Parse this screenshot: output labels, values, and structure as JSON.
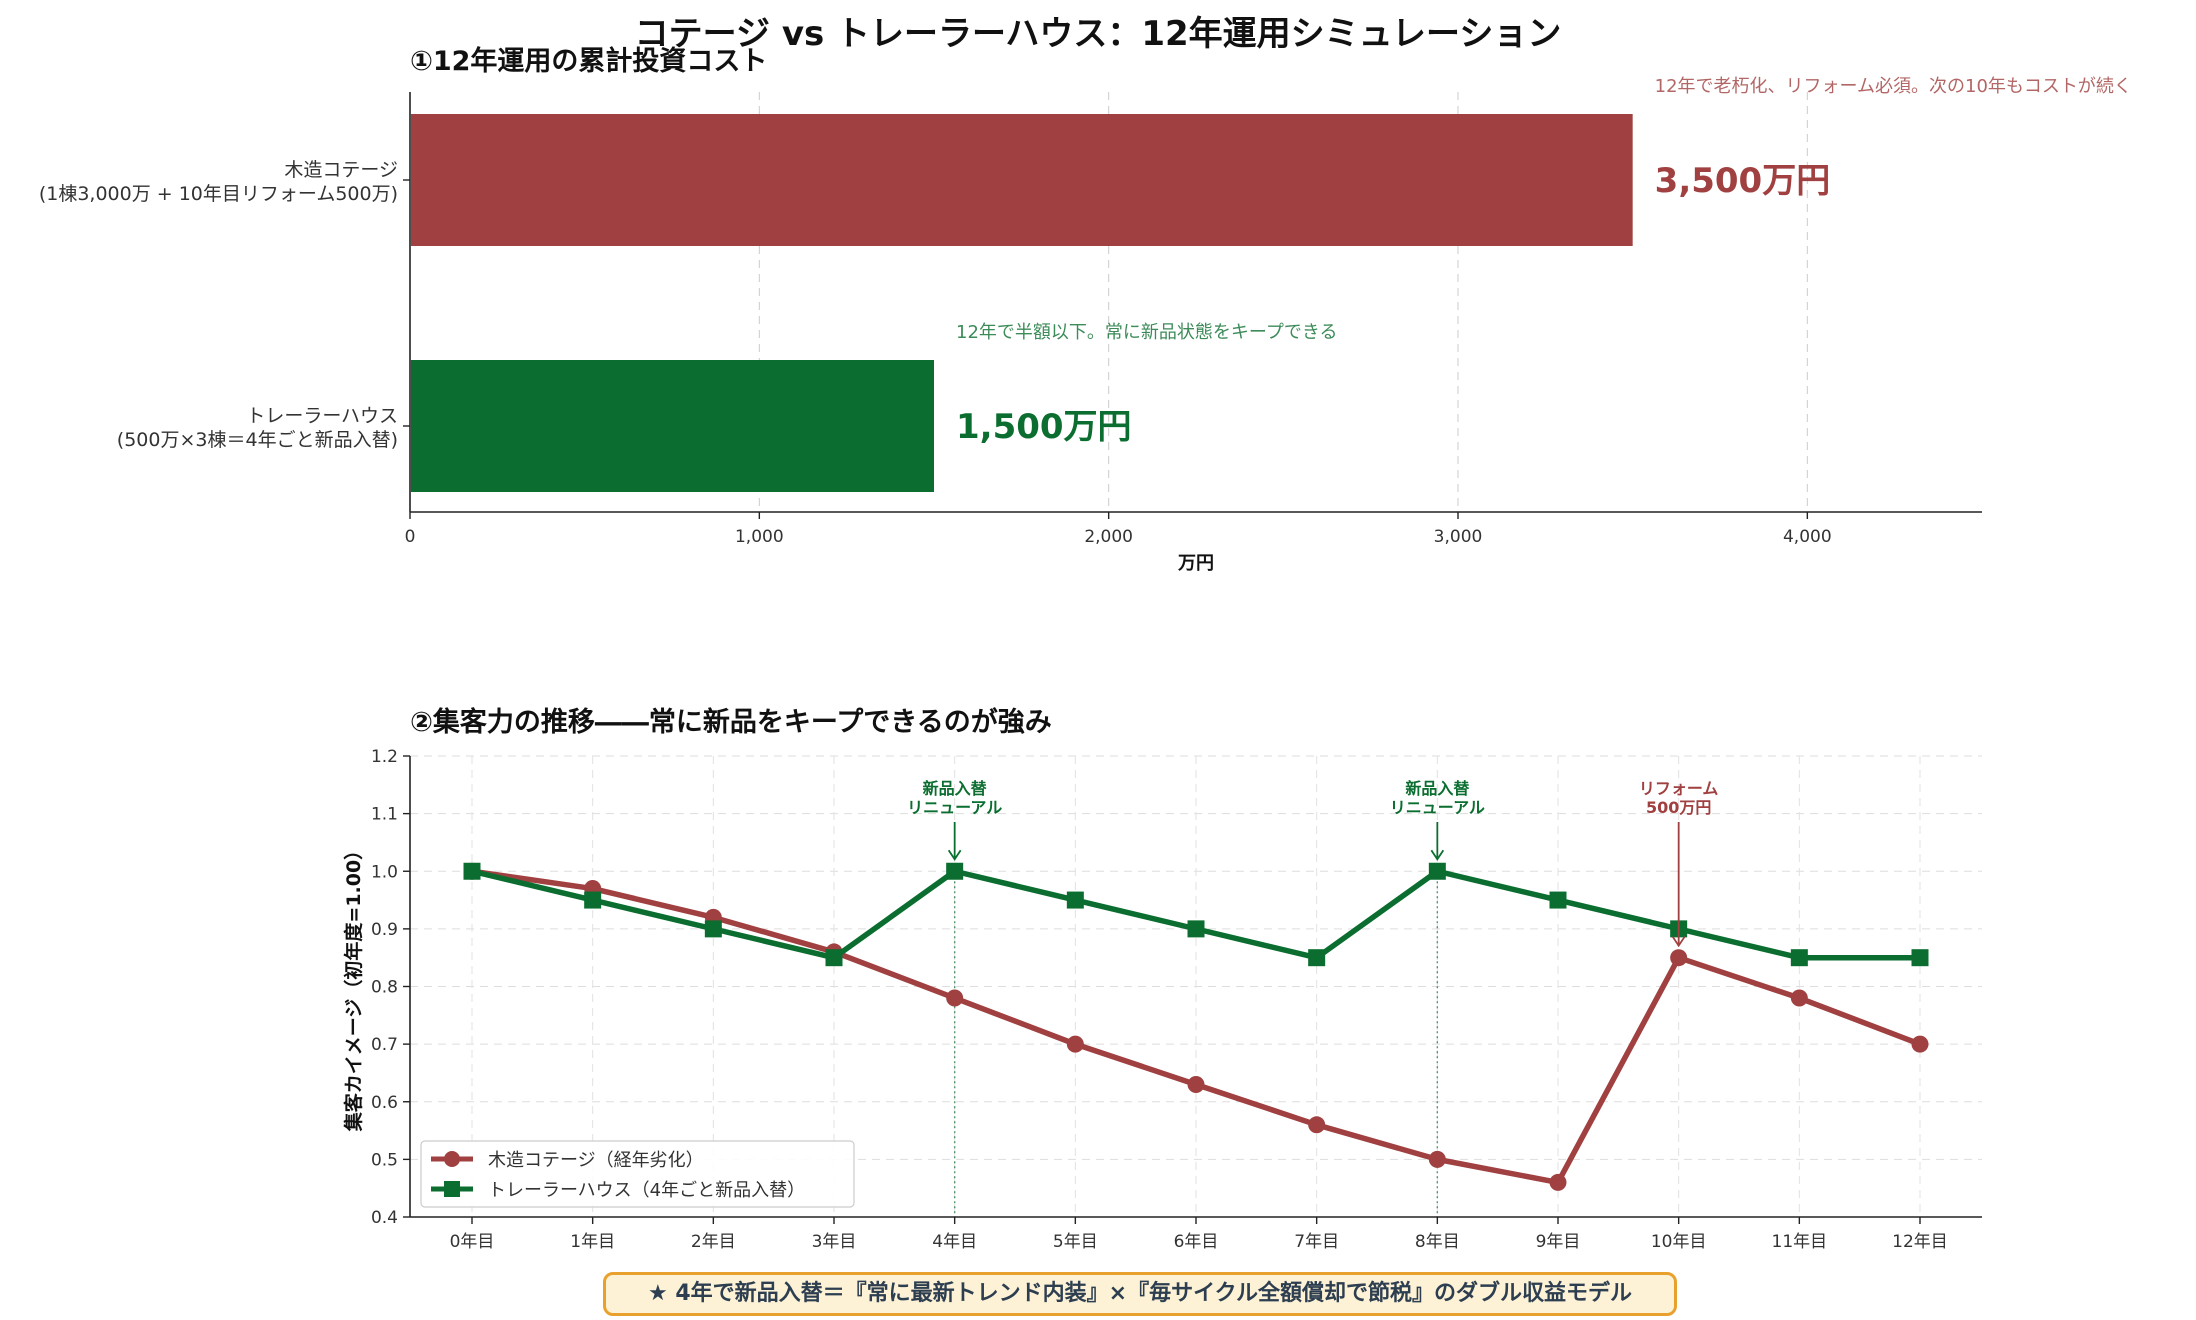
{
  "title": "コテージ vs トレーラーハウス：12年運用シミュレーション",
  "footer": "★ 4年で新品入替＝『常に最新トレンド内装』×『毎サイクル全額償却で節税』のダブル収益モデル",
  "colors": {
    "cottage": "#a04040",
    "trailer": "#0b6e30",
    "footer_border": "#e9a12e",
    "footer_bg": "#fdf2d6"
  },
  "chart_data": [
    {
      "type": "bar",
      "orientation": "horizontal",
      "title": "①12年運用の累計投資コスト",
      "xlabel": "万円",
      "xlim": [
        0,
        4500
      ],
      "xticks": [
        "0",
        "1,000",
        "2,000",
        "3,000",
        "4,000"
      ],
      "grid": true,
      "categories": [
        {
          "line1": "木造コテージ",
          "line2": "(1棟3,000万 + 10年目リフォーム500万)"
        },
        {
          "line1": "トレーラーハウス",
          "line2": "(500万×3棟＝4年ごと新品入替)"
        }
      ],
      "values": [
        3500,
        1500
      ],
      "value_labels": [
        "3,500万円",
        "1,500万円"
      ],
      "annotations": [
        "12年で老朽化、リフォーム必須。次の10年もコストが続く",
        "12年で半額以下。常に新品状態をキープできる"
      ]
    },
    {
      "type": "line",
      "title": "②集客力の推移――常に新品をキープできるのが強み",
      "xlabel": "",
      "ylabel": "集客カイメージ（初年度=1.00）",
      "x": [
        "0年目",
        "1年目",
        "2年目",
        "3年目",
        "4年目",
        "5年目",
        "6年目",
        "7年目",
        "8年目",
        "9年目",
        "10年目",
        "11年目",
        "12年目"
      ],
      "ylim": [
        0.4,
        1.2
      ],
      "yticks": [
        "0.4",
        "0.5",
        "0.6",
        "0.7",
        "0.8",
        "0.9",
        "1.0",
        "1.1",
        "1.2"
      ],
      "grid": true,
      "legend_position": "lower-left",
      "series": [
        {
          "name": "木造コテージ（経年劣化）",
          "values": [
            1.0,
            0.97,
            0.92,
            0.86,
            0.78,
            0.7,
            0.63,
            0.56,
            0.5,
            0.46,
            0.85,
            0.78,
            0.7
          ]
        },
        {
          "name": "トレーラーハウス（4年ごと新品入替）",
          "values": [
            1.0,
            0.95,
            0.9,
            0.85,
            1.0,
            0.95,
            0.9,
            0.85,
            1.0,
            0.95,
            0.9,
            0.85,
            0.85
          ]
        }
      ],
      "annotations": [
        {
          "x_index": 4,
          "y": 1.0,
          "line1": "新品入替",
          "line2": "リニューアル",
          "series": 1
        },
        {
          "x_index": 8,
          "y": 1.0,
          "line1": "新品入替",
          "line2": "リニューアル",
          "series": 1
        },
        {
          "x_index": 10,
          "y": 0.85,
          "line1": "リフォーム",
          "line2": "500万円",
          "series": 0
        }
      ],
      "vlines_at_index": [
        4,
        8
      ]
    }
  ]
}
